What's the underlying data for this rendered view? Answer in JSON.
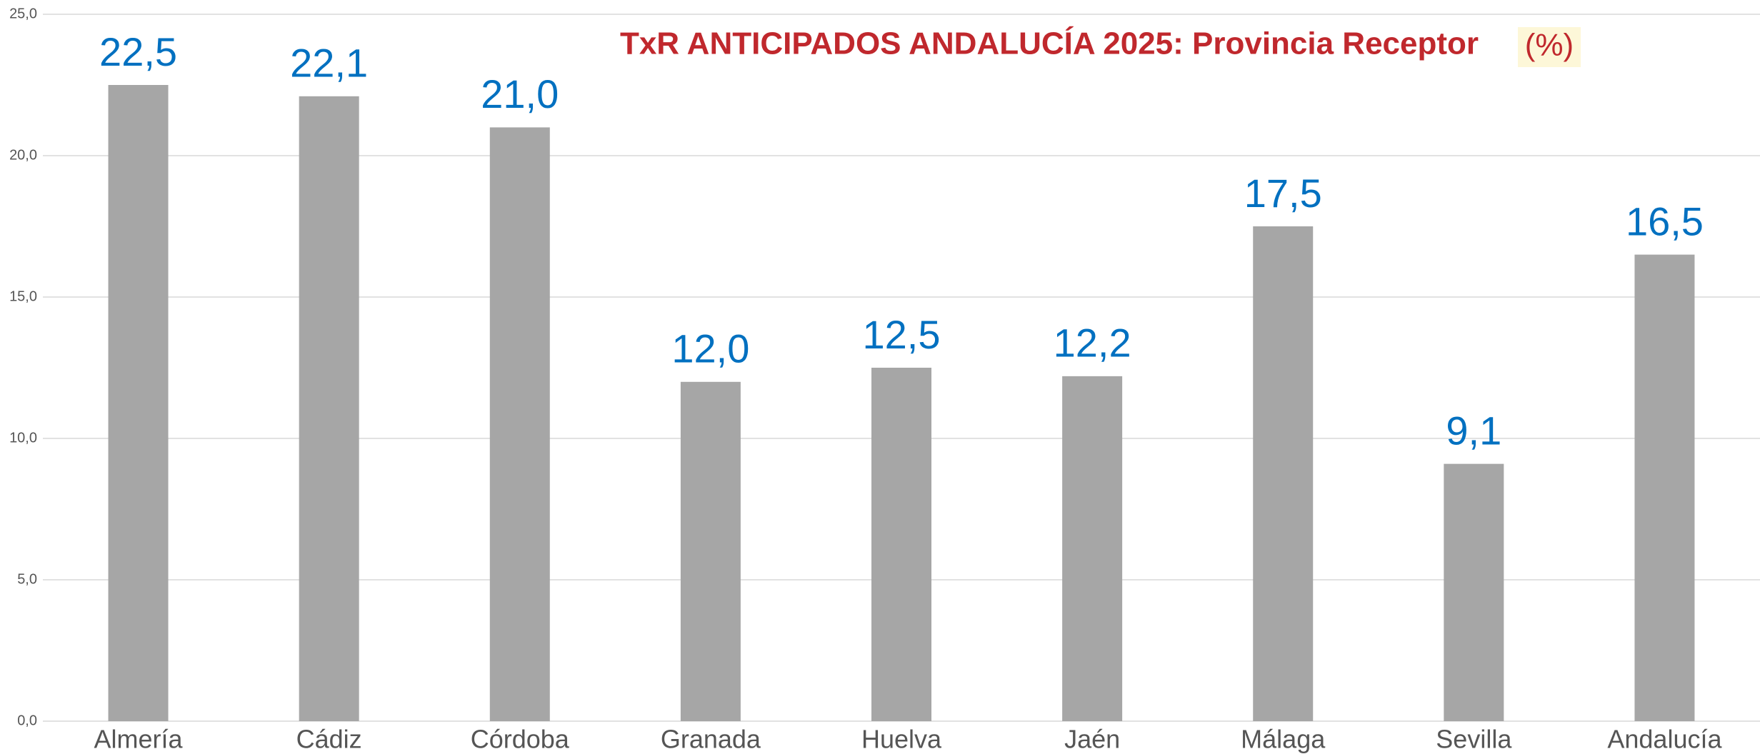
{
  "chart_data": {
    "type": "bar",
    "title": "TxR ANTICIPADOS ANDALUCÍA 2025: Provincia Receptor",
    "unit": "(%)",
    "categories": [
      "Almería",
      "Cádiz",
      "Córdoba",
      "Granada",
      "Huelva",
      "Jaén",
      "Málaga",
      "Sevilla",
      "Andalucía"
    ],
    "values": [
      22.5,
      22.1,
      21.0,
      12.0,
      12.5,
      12.2,
      17.5,
      9.1,
      16.5
    ],
    "value_labels": [
      "22,5",
      "22,1",
      "21,0",
      "12,0",
      "12,5",
      "12,2",
      "17,5",
      "9,1",
      "16,5"
    ],
    "color": "#a6a6a6",
    "label_color": "#0070c0",
    "ylim": [
      0,
      25
    ],
    "yticks": [
      {
        "value": 0,
        "label": "0,0"
      },
      {
        "value": 5,
        "label": "5,0"
      },
      {
        "value": 10,
        "label": "10,0"
      },
      {
        "value": 15,
        "label": "15,0"
      },
      {
        "value": 20,
        "label": "20,0"
      },
      {
        "value": 25,
        "label": "25,0"
      }
    ],
    "grid": true
  }
}
